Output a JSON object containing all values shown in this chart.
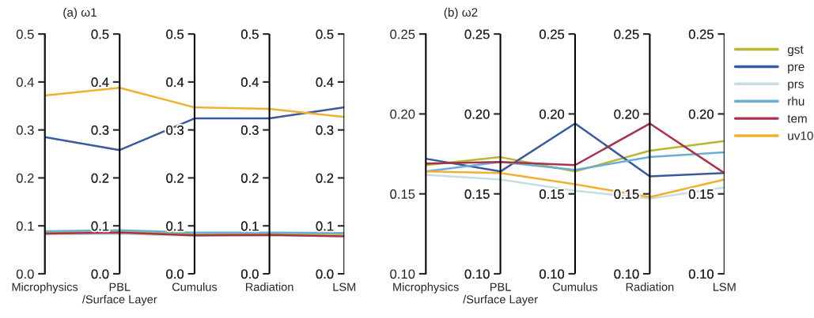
{
  "chart_data": [
    {
      "type": "line",
      "title": "(a) ω1",
      "categories": [
        "Microphysics",
        "PBL\n/Surface Layer",
        "Cumulus",
        "Radiation",
        "LSM"
      ],
      "ylim": [
        0,
        0.5
      ],
      "yticks": [
        {
          "value": 0,
          "label": "0.0"
        },
        {
          "value": 0.1,
          "label": "0.1"
        },
        {
          "value": 0.2,
          "label": "0.2"
        },
        {
          "value": 0.3,
          "label": "0.3"
        },
        {
          "value": 0.4,
          "label": "0.4"
        },
        {
          "value": 0.5,
          "label": "0.5"
        }
      ],
      "grid": "x",
      "legend": false,
      "marker": "none",
      "line_style": "solid",
      "series": [
        {
          "color": "#b5b830",
          "values": [
            0.087,
            0.089,
            0.083,
            0.084,
            0.082
          ]
        },
        {
          "color": "#3a5a9f",
          "values": [
            0.285,
            0.258,
            0.324,
            0.324,
            0.347
          ]
        },
        {
          "color": "#c8dce3",
          "values": [
            0.082,
            0.083,
            0.079,
            0.08,
            0.079
          ]
        },
        {
          "color": "#6aaed6",
          "values": [
            0.089,
            0.091,
            0.086,
            0.086,
            0.085
          ]
        },
        {
          "color": "#a8324a",
          "values": [
            0.084,
            0.086,
            0.08,
            0.081,
            0.078
          ]
        },
        {
          "color": "#f0b030",
          "values": [
            0.372,
            0.388,
            0.347,
            0.344,
            0.327
          ]
        }
      ]
    },
    {
      "type": "line",
      "title": "(b) ω2",
      "categories": [
        "Microphysics",
        "PBL\n/Surface Layer",
        "Cumulus",
        "Radiation",
        "LSM"
      ],
      "ylim": [
        0.1,
        0.25
      ],
      "yticks": [
        {
          "value": 0.1,
          "label": "0.10"
        },
        {
          "value": 0.15,
          "label": "0.15"
        },
        {
          "value": 0.2,
          "label": "0.20"
        },
        {
          "value": 0.25,
          "label": "0.25"
        }
      ],
      "grid": "x",
      "legend": "right",
      "marker": "none",
      "line_style": "solid",
      "series": [
        {
          "name": "gst",
          "color": "#b5b830",
          "values": [
            0.168,
            0.173,
            0.164,
            0.177,
            0.183
          ]
        },
        {
          "name": "pre",
          "color": "#3a5a9f",
          "values": [
            0.172,
            0.164,
            0.194,
            0.161,
            0.163
          ]
        },
        {
          "name": "prs",
          "color": "#c8dce3",
          "values": [
            0.162,
            0.159,
            0.152,
            0.147,
            0.154
          ]
        },
        {
          "name": "rhu",
          "color": "#6aaed6",
          "values": [
            0.164,
            0.17,
            0.165,
            0.173,
            0.176
          ]
        },
        {
          "name": "tem",
          "color": "#a8324a",
          "values": [
            0.169,
            0.17,
            0.168,
            0.194,
            0.163
          ]
        },
        {
          "name": "uv10",
          "color": "#f0b030",
          "values": [
            0.164,
            0.163,
            0.156,
            0.148,
            0.159
          ]
        }
      ]
    }
  ]
}
